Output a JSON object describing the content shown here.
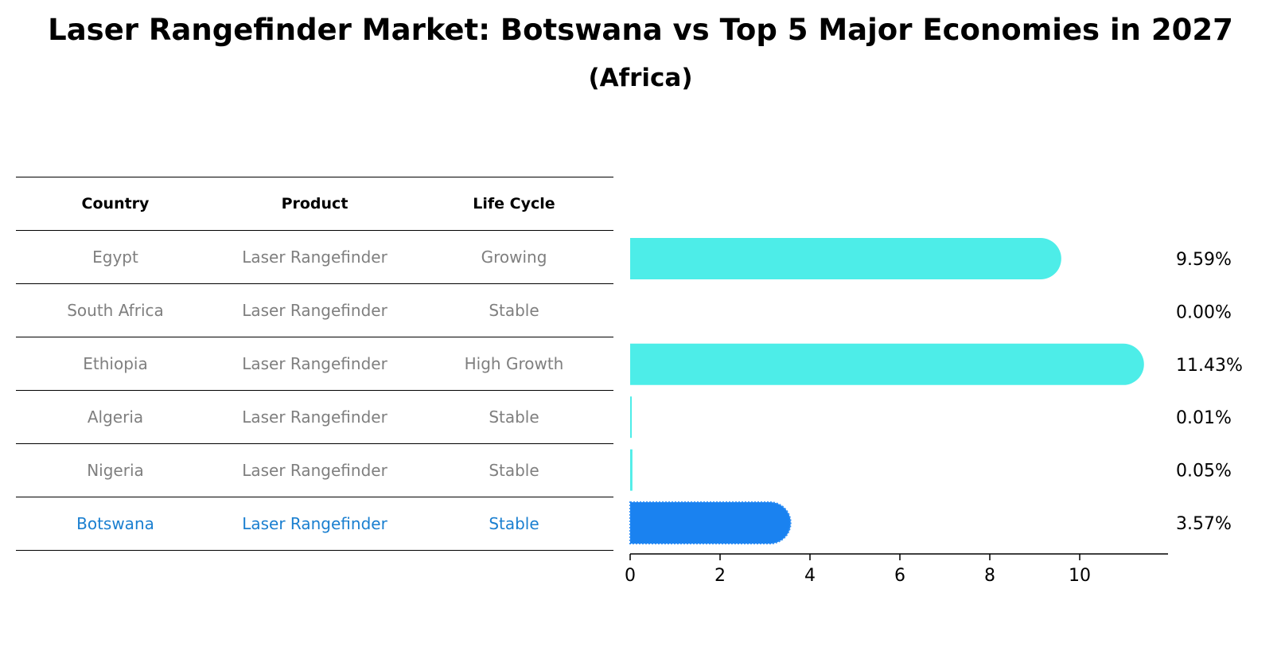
{
  "title": "Laser Rangefinder Market: Botswana vs Top 5 Major Economies in 2027",
  "subtitle": "(Africa)",
  "table": {
    "headers": [
      "Country",
      "Product",
      "Life Cycle"
    ],
    "rows": [
      {
        "country": "Egypt",
        "product": "Laser Rangefinder",
        "lifecycle": "Growing"
      },
      {
        "country": "South Africa",
        "product": "Laser Rangefinder",
        "lifecycle": "Stable"
      },
      {
        "country": "Ethiopia",
        "product": "Laser Rangefinder",
        "lifecycle": "High Growth"
      },
      {
        "country": "Algeria",
        "product": "Laser Rangefinder",
        "lifecycle": "Stable"
      },
      {
        "country": "Nigeria",
        "product": "Laser Rangefinder",
        "lifecycle": "Stable"
      },
      {
        "country": "Botswana",
        "product": "Laser Rangefinder",
        "lifecycle": "Stable"
      }
    ]
  },
  "colors": {
    "bar": "#4dede8",
    "highlight_bar": "#1a82f0",
    "highlight_text": "#1a7fd0",
    "row_text": "#7f7f7f"
  },
  "chart_data": {
    "type": "bar",
    "orientation": "horizontal",
    "categories": [
      "Egypt",
      "South Africa",
      "Ethiopia",
      "Algeria",
      "Nigeria",
      "Botswana"
    ],
    "values": [
      9.59,
      0.0,
      11.43,
      0.01,
      0.05,
      3.57
    ],
    "value_labels": [
      "9.59%",
      "0.00%",
      "11.43%",
      "0.01%",
      "0.05%",
      "3.57%"
    ],
    "highlight": "Botswana",
    "xlim": [
      0,
      12
    ],
    "xticks": [
      0,
      2,
      4,
      6,
      8,
      10
    ],
    "grid": false
  }
}
